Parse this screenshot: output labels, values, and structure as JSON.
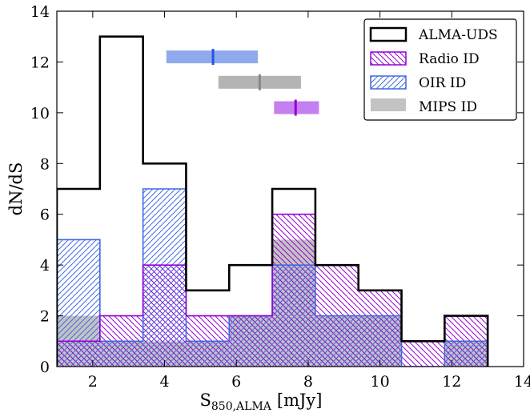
{
  "chart_data": {
    "type": "bar",
    "xlabel": "S",
    "xlabel_sub": "850,ALMA",
    "xlabel_unit": "[mJy]",
    "ylabel": "dN/dS",
    "xlim": [
      1,
      14
    ],
    "ylim": [
      0,
      14
    ],
    "xticks": [
      2,
      4,
      6,
      8,
      10,
      12,
      14
    ],
    "yticks": [
      0,
      2,
      4,
      6,
      8,
      10,
      12,
      14
    ],
    "bin_edges": [
      1.0,
      2.2,
      3.4,
      4.6,
      5.8,
      7.0,
      8.2,
      9.4,
      10.6,
      11.8,
      13.0
    ],
    "series": [
      {
        "name": "ALMA-UDS",
        "values": [
          7,
          13,
          8,
          3,
          4,
          7,
          4,
          3,
          1,
          2
        ],
        "style": "step-outline",
        "color": "#000000"
      },
      {
        "name": "Radio ID",
        "values": [
          1,
          2,
          4,
          2,
          2,
          6,
          4,
          3,
          1,
          2
        ],
        "style": "hatch-back",
        "color": "#9400d3"
      },
      {
        "name": "OIR ID",
        "values": [
          5,
          1,
          7,
          1,
          2,
          4,
          2,
          2,
          0,
          1
        ],
        "style": "hatch-forward",
        "color": "#4169e1"
      },
      {
        "name": "MIPS ID",
        "values": [
          2,
          1,
          1,
          1,
          2,
          5,
          2,
          2,
          0,
          1
        ],
        "style": "filled",
        "color": "#a9a9a9"
      }
    ],
    "median_markers": [
      {
        "series": "OIR ID",
        "median": 5.35,
        "low": 4.05,
        "high": 6.6,
        "y": 12.2,
        "bar_color": "#8faaec",
        "tick_color": "#2255dd"
      },
      {
        "series": "MIPS ID",
        "median": 6.65,
        "low": 5.5,
        "high": 7.8,
        "y": 11.2,
        "bar_color": "#b4b4b4",
        "tick_color": "#888888"
      },
      {
        "series": "Radio ID",
        "median": 7.65,
        "low": 7.05,
        "high": 8.3,
        "y": 10.2,
        "bar_color": "#c47ff0",
        "tick_color": "#9400d3"
      }
    ],
    "legend": {
      "position": "top-right",
      "entries": [
        "ALMA-UDS",
        "Radio ID",
        "OIR ID",
        "MIPS ID"
      ]
    },
    "grid": false
  }
}
